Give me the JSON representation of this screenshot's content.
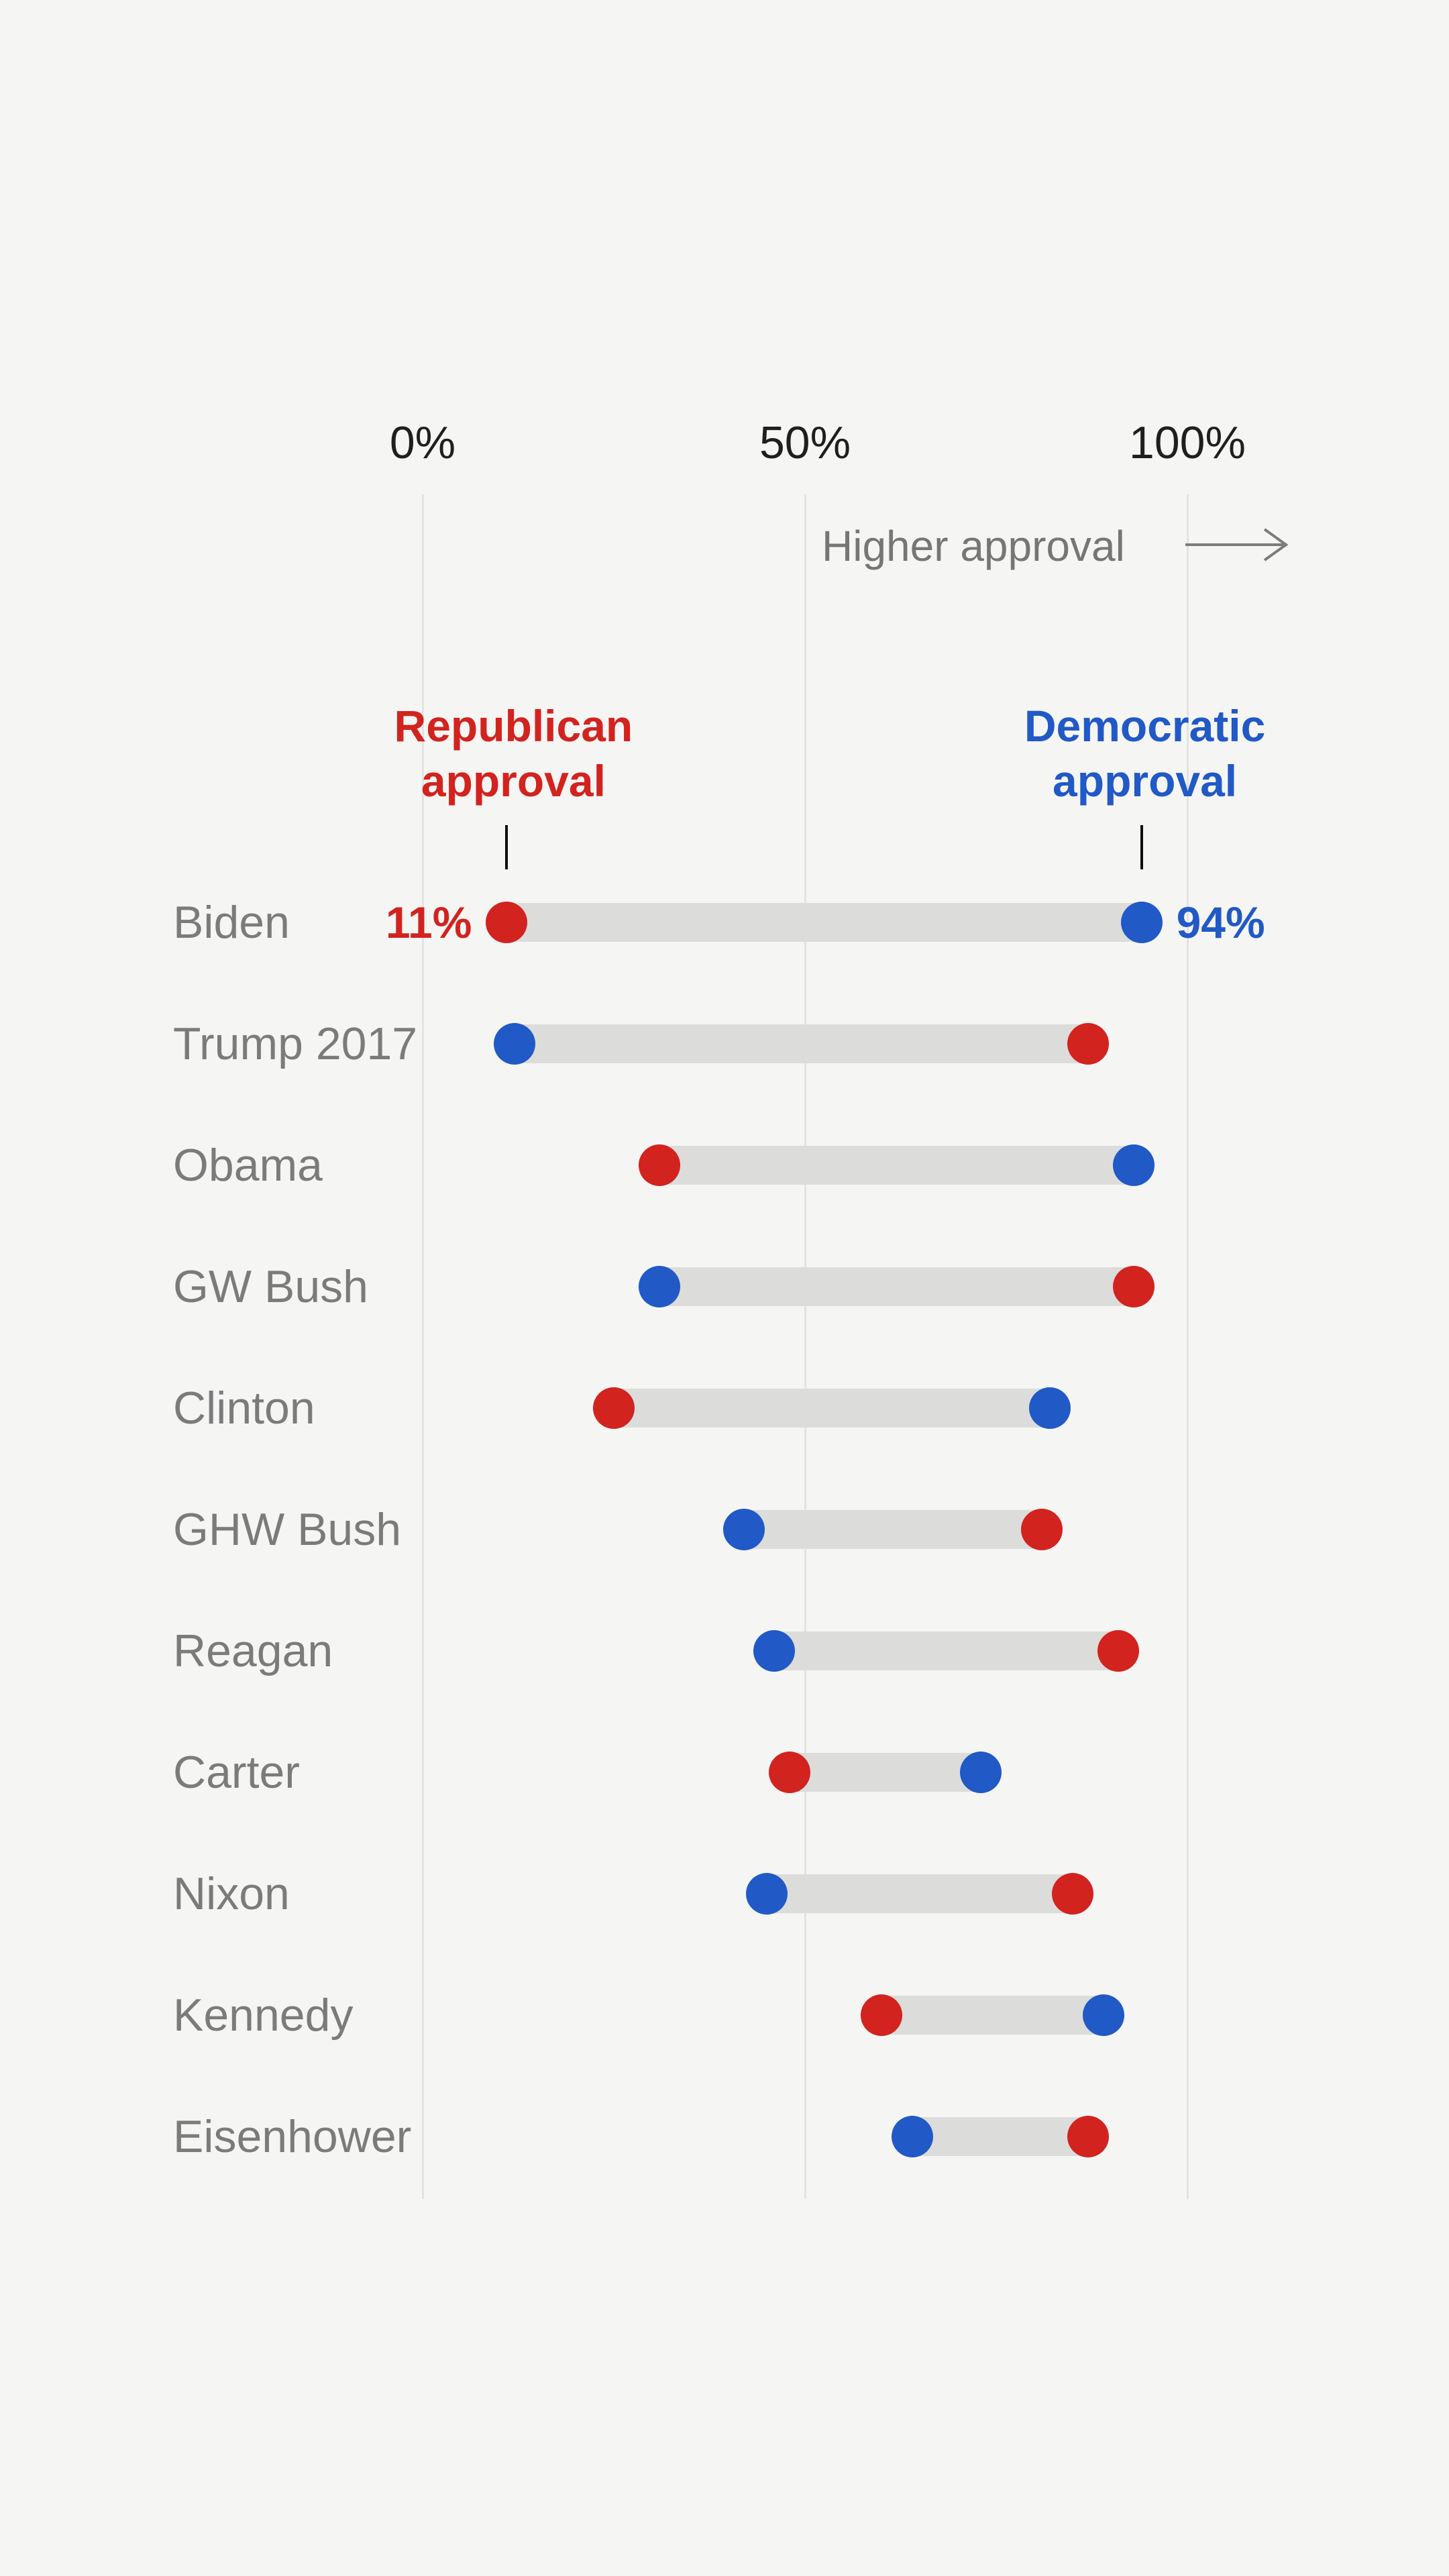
{
  "colors": {
    "background": "#f5f5f4",
    "gridline": "#e3e3e1",
    "bar": "#dcdcdb",
    "republican": "#d2231f",
    "democratic": "#2159c6",
    "name_text": "#7b7b7b",
    "axis_text": "#1f1f1f",
    "direction_text": "#767676",
    "tick_mark": "#0c0c0c"
  },
  "axis": {
    "ticks": [
      {
        "label": "0%",
        "pct": 0
      },
      {
        "label": "50%",
        "pct": 50
      },
      {
        "label": "100%",
        "pct": 100
      }
    ],
    "direction_label": "Higher approval"
  },
  "annotations": {
    "republican": {
      "text": "Republican\napproval",
      "pct": 11
    },
    "democratic": {
      "text": "Democratic\napproval",
      "pct": 94
    }
  },
  "chart_data": {
    "type": "dumbbell",
    "unit": "%",
    "xlim": [
      0,
      100
    ],
    "x_gridlines": [
      0,
      50,
      100
    ],
    "series": [
      {
        "name": "Republican approval",
        "color_key": "republican"
      },
      {
        "name": "Democratic approval",
        "color_key": "democratic"
      }
    ],
    "rows": [
      {
        "president": "Biden",
        "republican": 11,
        "democratic": 94,
        "republican_value_label": "11%",
        "democratic_value_label": "94%"
      },
      {
        "president": "Trump 2017",
        "republican": 87,
        "democratic": 12
      },
      {
        "president": "Obama",
        "republican": 31,
        "democratic": 93
      },
      {
        "president": "GW Bush",
        "republican": 93,
        "democratic": 31
      },
      {
        "president": "Clinton",
        "republican": 25,
        "democratic": 82
      },
      {
        "president": "GHW Bush",
        "republican": 81,
        "democratic": 42
      },
      {
        "president": "Reagan",
        "republican": 91,
        "democratic": 46
      },
      {
        "president": "Carter",
        "republican": 48,
        "democratic": 73
      },
      {
        "president": "Nixon",
        "republican": 85,
        "democratic": 45
      },
      {
        "president": "Kennedy",
        "republican": 60,
        "democratic": 89
      },
      {
        "president": "Eisenhower",
        "republican": 87,
        "democratic": 64
      }
    ]
  }
}
